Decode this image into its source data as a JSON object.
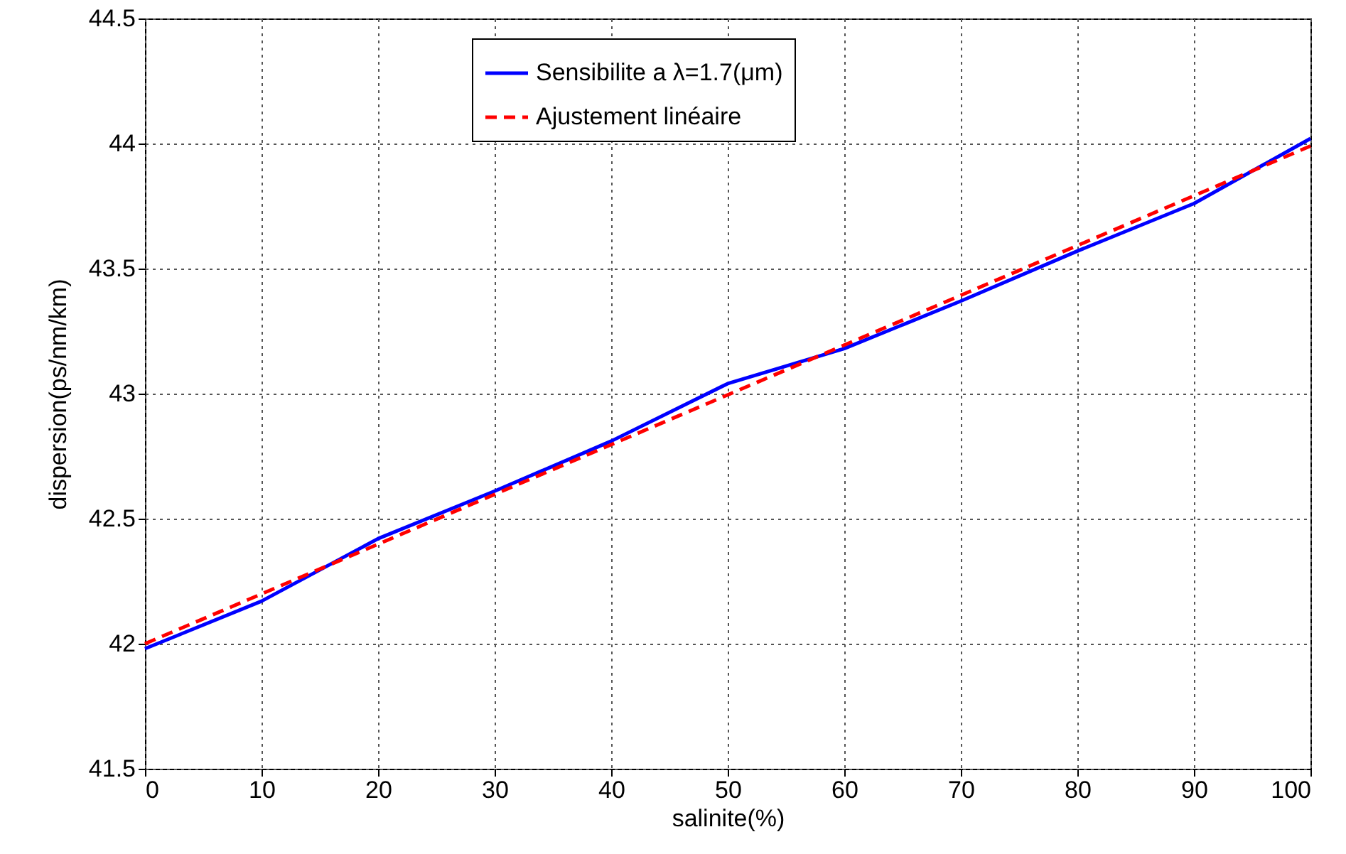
{
  "chart_data": {
    "type": "line",
    "xlabel": "salinite(%)",
    "ylabel": "dispersion(ps/nm/km)",
    "xlim": [
      0,
      100
    ],
    "xticks": [
      0,
      10,
      20,
      30,
      40,
      50,
      60,
      70,
      80,
      90,
      100
    ],
    "ylim": [
      41.5,
      44.5
    ],
    "yticks": [
      41.5,
      42,
      42.5,
      43,
      43.5,
      44,
      44.5
    ],
    "grid": true,
    "legend": "top",
    "series": [
      {
        "name": "Sensibilite a λ=1.7(μm)",
        "color": "#0000ff",
        "line_style": "solid",
        "x": [
          0,
          10,
          20,
          30,
          40,
          50,
          60,
          70,
          80,
          90,
          100
        ],
        "values": [
          41.98,
          42.17,
          42.42,
          42.61,
          42.81,
          43.04,
          43.18,
          43.37,
          43.57,
          43.76,
          44.02
        ]
      },
      {
        "name": "Ajustement linéaire",
        "color": "#ff0000",
        "line_style": "dashed",
        "x": [
          0,
          100
        ],
        "values": [
          42.0,
          43.99
        ]
      }
    ]
  }
}
